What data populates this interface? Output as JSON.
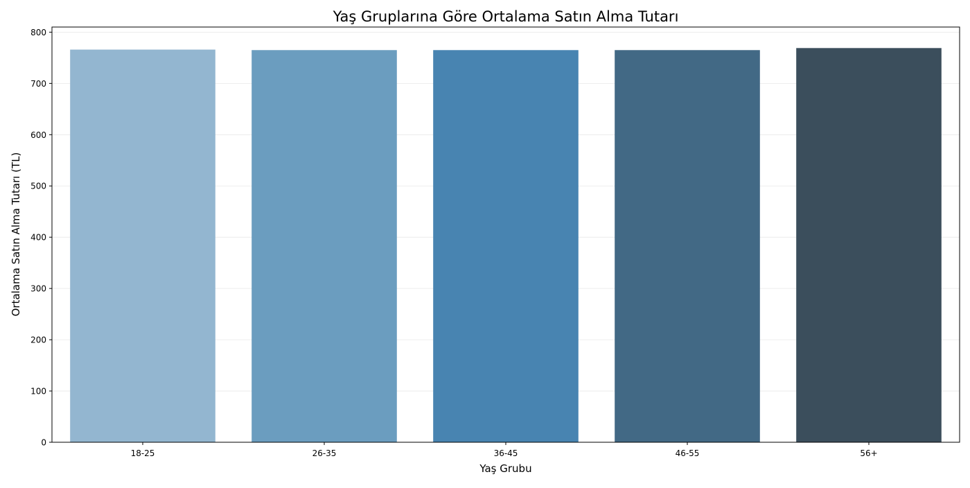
{
  "chart_data": {
    "type": "bar",
    "title": "Yaş Gruplarına Göre Ortalama Satın Alma Tutarı",
    "xlabel": "Yaş Grubu",
    "ylabel": "Ortalama Satın Alma Tutarı (TL)",
    "categories": [
      "18-25",
      "26-35",
      "36-45",
      "46-55",
      "56+"
    ],
    "values": [
      766,
      765,
      765,
      765,
      769
    ],
    "colors": [
      "#93b6d0",
      "#6b9dbf",
      "#4884b1",
      "#426985",
      "#3b4e5c"
    ],
    "ylim": [
      0,
      810
    ],
    "yticks": [
      0,
      100,
      200,
      300,
      400,
      500,
      600,
      700,
      800
    ],
    "ytick_labels": [
      "0",
      "100",
      "200",
      "300",
      "400",
      "500",
      "600",
      "700",
      "800"
    ],
    "grid": true,
    "grid_axis": "y",
    "legend": "none"
  }
}
